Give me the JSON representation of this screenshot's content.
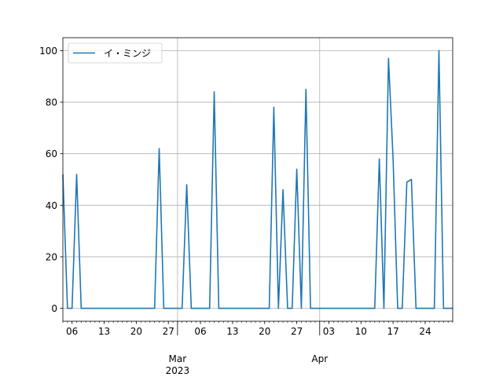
{
  "chart_data": {
    "type": "line",
    "title": "",
    "xlabel": "",
    "ylabel": "",
    "x_axis": {
      "start": "2023-02-04",
      "end": "2023-04-30",
      "major_ticks": [
        {
          "date": "2023-03-01",
          "label": "Mar"
        },
        {
          "date": "2023-04-01",
          "label": "Apr"
        }
      ],
      "year_label": {
        "date": "2023-03-01",
        "label": "2023"
      },
      "minor_ticks": [
        {
          "date": "2023-02-06",
          "label": "06"
        },
        {
          "date": "2023-02-13",
          "label": "13"
        },
        {
          "date": "2023-02-20",
          "label": "20"
        },
        {
          "date": "2023-02-27",
          "label": "27"
        },
        {
          "date": "2023-03-06",
          "label": "06"
        },
        {
          "date": "2023-03-13",
          "label": "13"
        },
        {
          "date": "2023-03-20",
          "label": "20"
        },
        {
          "date": "2023-03-27",
          "label": "27"
        },
        {
          "date": "2023-04-03",
          "label": "03"
        },
        {
          "date": "2023-04-10",
          "label": "10"
        },
        {
          "date": "2023-04-17",
          "label": "17"
        },
        {
          "date": "2023-04-24",
          "label": "24"
        }
      ]
    },
    "ylim": [
      -5,
      105
    ],
    "y_ticks": [
      0,
      20,
      40,
      60,
      80,
      100
    ],
    "grid": true,
    "legend_position": "top-left",
    "series": [
      {
        "name": "イ・ミンジ",
        "color": "#1f77b4",
        "points": [
          {
            "x": "2023-02-04",
            "y": 52
          },
          {
            "x": "2023-02-05",
            "y": 0
          },
          {
            "x": "2023-02-06",
            "y": 0
          },
          {
            "x": "2023-02-07",
            "y": 52
          },
          {
            "x": "2023-02-08",
            "y": 0
          },
          {
            "x": "2023-02-24",
            "y": 0
          },
          {
            "x": "2023-02-25",
            "y": 62
          },
          {
            "x": "2023-02-26",
            "y": 0
          },
          {
            "x": "2023-03-02",
            "y": 0
          },
          {
            "x": "2023-03-03",
            "y": 48
          },
          {
            "x": "2023-03-04",
            "y": 0
          },
          {
            "x": "2023-03-08",
            "y": 0
          },
          {
            "x": "2023-03-09",
            "y": 84
          },
          {
            "x": "2023-03-10",
            "y": 0
          },
          {
            "x": "2023-03-21",
            "y": 0
          },
          {
            "x": "2023-03-22",
            "y": 78
          },
          {
            "x": "2023-03-23",
            "y": 0
          },
          {
            "x": "2023-03-24",
            "y": 46
          },
          {
            "x": "2023-03-25",
            "y": 0
          },
          {
            "x": "2023-03-26",
            "y": 0
          },
          {
            "x": "2023-03-27",
            "y": 54
          },
          {
            "x": "2023-03-28",
            "y": 0
          },
          {
            "x": "2023-03-29",
            "y": 85
          },
          {
            "x": "2023-03-30",
            "y": 0
          },
          {
            "x": "2023-04-13",
            "y": 0
          },
          {
            "x": "2023-04-14",
            "y": 58
          },
          {
            "x": "2023-04-15",
            "y": 0
          },
          {
            "x": "2023-04-16",
            "y": 97
          },
          {
            "x": "2023-04-17",
            "y": 58
          },
          {
            "x": "2023-04-18",
            "y": 0
          },
          {
            "x": "2023-04-19",
            "y": 0
          },
          {
            "x": "2023-04-20",
            "y": 49
          },
          {
            "x": "2023-04-21",
            "y": 50
          },
          {
            "x": "2023-04-22",
            "y": 0
          },
          {
            "x": "2023-04-26",
            "y": 0
          },
          {
            "x": "2023-04-27",
            "y": 100
          },
          {
            "x": "2023-04-28",
            "y": 0
          },
          {
            "x": "2023-04-30",
            "y": 0
          }
        ]
      }
    ]
  }
}
